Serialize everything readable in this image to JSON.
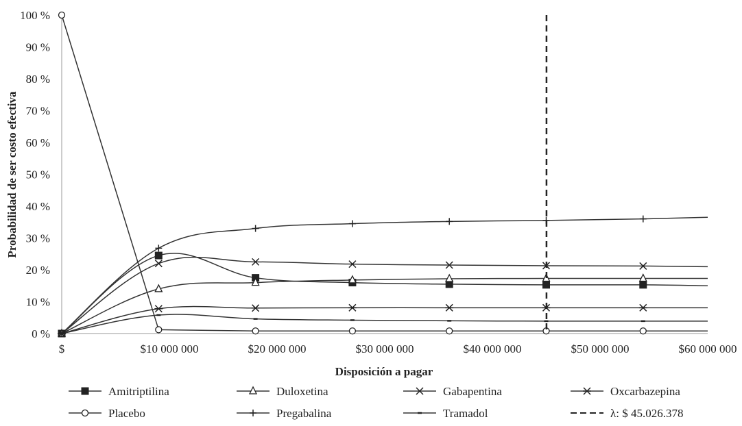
{
  "chart_data": {
    "type": "line",
    "title": "",
    "xlabel": "Disposición a pagar",
    "ylabel": "Probabilidad de ser costo efectiva",
    "x_ticks": [
      {
        "value": 0,
        "label": "$"
      },
      {
        "value": 10000000,
        "label": "$10 000 000"
      },
      {
        "value": 20000000,
        "label": "$20 000 000"
      },
      {
        "value": 30000000,
        "label": "$30 000 000"
      },
      {
        "value": 40000000,
        "label": "$40 000 000"
      },
      {
        "value": 50000000,
        "label": "$50 000 000"
      },
      {
        "value": 60000000,
        "label": "$60 000 000"
      }
    ],
    "y_ticks": [
      {
        "value": 0,
        "label": "0 %"
      },
      {
        "value": 10,
        "label": "10 %"
      },
      {
        "value": 20,
        "label": "20 %"
      },
      {
        "value": 30,
        "label": "30 %"
      },
      {
        "value": 40,
        "label": "40 %"
      },
      {
        "value": 50,
        "label": "50 %"
      },
      {
        "value": 60,
        "label": "60 %"
      },
      {
        "value": 70,
        "label": "70 %"
      },
      {
        "value": 80,
        "label": "80 %"
      },
      {
        "value": 90,
        "label": "90 %"
      },
      {
        "value": 100,
        "label": "100 %"
      }
    ],
    "xlim": [
      0,
      60000000
    ],
    "ylim": [
      0,
      100
    ],
    "grid": false,
    "legend_position": "bottom",
    "series": [
      {
        "name": "Amitriptilina",
        "marker": "square",
        "x": [
          0,
          9000000,
          18000000,
          27000000,
          36000000,
          45000000,
          54000000,
          60000000
        ],
        "y": [
          0,
          24.5,
          17.5,
          16,
          15.5,
          15.3,
          15.3,
          15
        ]
      },
      {
        "name": "Duloxetina",
        "marker": "triangle",
        "x": [
          0,
          9000000,
          18000000,
          27000000,
          36000000,
          45000000,
          54000000,
          60000000
        ],
        "y": [
          0,
          14,
          16,
          16.8,
          17.2,
          17.3,
          17.3,
          17.3
        ]
      },
      {
        "name": "Gabapentina",
        "marker": "x",
        "x": [
          0,
          9000000,
          18000000,
          27000000,
          36000000,
          45000000,
          54000000,
          60000000
        ],
        "y": [
          0,
          22,
          22.5,
          21.8,
          21.5,
          21.3,
          21.2,
          21
        ]
      },
      {
        "name": "Oxcarbazepina",
        "marker": "asterisk",
        "x": [
          0,
          9000000,
          18000000,
          27000000,
          36000000,
          45000000,
          54000000,
          60000000
        ],
        "y": [
          0,
          7.8,
          8,
          8.1,
          8.1,
          8.1,
          8.1,
          8.1
        ]
      },
      {
        "name": "Placebo",
        "marker": "circle",
        "straight": true,
        "x": [
          0,
          9000000,
          18000000,
          27000000,
          36000000,
          45000000,
          54000000,
          60000000
        ],
        "y": [
          100,
          1.2,
          0.8,
          0.8,
          0.8,
          0.8,
          0.8,
          0.8
        ]
      },
      {
        "name": "Pregabalina",
        "marker": "plus",
        "x": [
          0,
          9000000,
          18000000,
          27000000,
          36000000,
          45000000,
          54000000,
          60000000
        ],
        "y": [
          0,
          26.8,
          33,
          34.5,
          35.2,
          35.5,
          36,
          36.5
        ]
      },
      {
        "name": "Tramadol",
        "marker": "dash",
        "x": [
          0,
          9000000,
          18000000,
          27000000,
          36000000,
          45000000,
          54000000,
          60000000
        ],
        "y": [
          0,
          5.8,
          4.6,
          4.2,
          4,
          3.9,
          3.9,
          3.9
        ]
      }
    ],
    "threshold": {
      "label": "λ: $ 45.026.378",
      "x": 45026378
    }
  }
}
